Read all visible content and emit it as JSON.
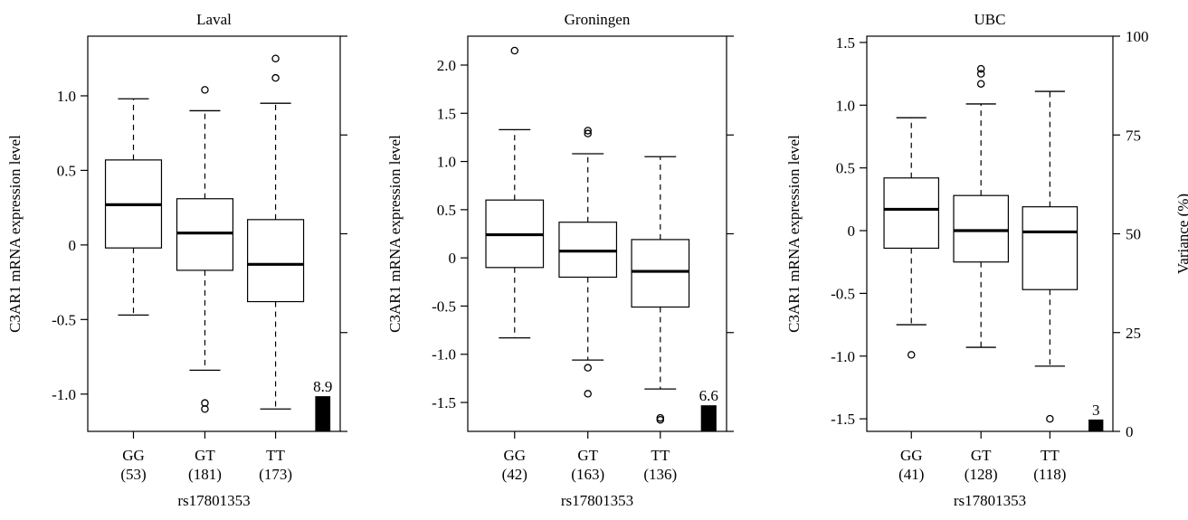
{
  "chart_data": [
    {
      "type": "box",
      "title": "Laval",
      "xlabel": "rs17801353",
      "ylabel": "C3AR1 mRNA expression level",
      "y2label": "",
      "ylim": [
        -1.25,
        1.4
      ],
      "yticks": [
        -1.0,
        -0.5,
        0,
        0.5,
        1.0
      ],
      "ytick_labels": [
        "-1.0",
        "-0.5",
        "0",
        "0.5",
        "1.0"
      ],
      "y2lim": [
        0,
        100
      ],
      "y2ticks": [
        0,
        25,
        50,
        75,
        100
      ],
      "y2tick_labels": [],
      "categories": [
        "GG",
        "GT",
        "TT"
      ],
      "counts": [
        "(53)",
        "(181)",
        "(173)"
      ],
      "boxes": [
        {
          "q1": -0.02,
          "median": 0.27,
          "q3": 0.57,
          "whisker_low": -0.47,
          "whisker_high": 0.98,
          "outliers": []
        },
        {
          "q1": -0.17,
          "median": 0.08,
          "q3": 0.31,
          "whisker_low": -0.84,
          "whisker_high": 0.9,
          "outliers": [
            1.04,
            -1.06,
            -1.1
          ]
        },
        {
          "q1": -0.38,
          "median": -0.13,
          "q3": 0.17,
          "whisker_low": -1.1,
          "whisker_high": 0.95,
          "outliers": [
            1.25,
            1.12
          ]
        }
      ],
      "variance_bar": {
        "value": 8.9,
        "label": "8.9"
      }
    },
    {
      "type": "box",
      "title": "Groningen",
      "xlabel": "rs17801353",
      "ylabel": "C3AR1 mRNA expression level",
      "y2label": "",
      "ylim": [
        -1.8,
        2.3
      ],
      "yticks": [
        -1.5,
        -1.0,
        -0.5,
        0,
        0.5,
        1.0,
        1.5,
        2.0
      ],
      "ytick_labels": [
        "-1.5",
        "-1.0",
        "-0.5",
        "0",
        "0.5",
        "1.0",
        "1.5",
        "2.0"
      ],
      "y2lim": [
        0,
        100
      ],
      "y2ticks": [
        0,
        25,
        50,
        75,
        100
      ],
      "y2tick_labels": [],
      "categories": [
        "GG",
        "GT",
        "TT"
      ],
      "counts": [
        "(42)",
        "(163)",
        "(136)"
      ],
      "boxes": [
        {
          "q1": -0.1,
          "median": 0.24,
          "q3": 0.6,
          "whisker_low": -0.83,
          "whisker_high": 1.33,
          "outliers": [
            2.15
          ]
        },
        {
          "q1": -0.2,
          "median": 0.07,
          "q3": 0.37,
          "whisker_low": -1.06,
          "whisker_high": 1.08,
          "outliers": [
            1.32,
            1.29,
            -1.14,
            -1.41
          ]
        },
        {
          "q1": -0.51,
          "median": -0.14,
          "q3": 0.19,
          "whisker_low": -1.36,
          "whisker_high": 1.05,
          "outliers": [
            -1.66,
            -1.68
          ]
        }
      ],
      "variance_bar": {
        "value": 6.6,
        "label": "6.6"
      }
    },
    {
      "type": "box",
      "title": "UBC",
      "xlabel": "rs17801353",
      "ylabel": "C3AR1 mRNA expression level",
      "y2label": "Variance (%)",
      "ylim": [
        -1.6,
        1.55
      ],
      "yticks": [
        -1.5,
        -1.0,
        -0.5,
        0,
        0.5,
        1.0,
        1.5
      ],
      "ytick_labels": [
        "-1.5",
        "-1.0",
        "-0.5",
        "0",
        "0.5",
        "1.0",
        "1.5"
      ],
      "y2lim": [
        0,
        100
      ],
      "y2ticks": [
        0,
        25,
        50,
        75,
        100
      ],
      "y2tick_labels": [
        "0",
        "25",
        "50",
        "75",
        "100"
      ],
      "categories": [
        "GG",
        "GT",
        "TT"
      ],
      "counts": [
        "(41)",
        "(128)",
        "(118)"
      ],
      "boxes": [
        {
          "q1": -0.14,
          "median": 0.17,
          "q3": 0.42,
          "whisker_low": -0.75,
          "whisker_high": 0.9,
          "outliers": [
            -0.99
          ]
        },
        {
          "q1": -0.25,
          "median": 0.0,
          "q3": 0.28,
          "whisker_low": -0.93,
          "whisker_high": 1.01,
          "outliers": [
            1.29,
            1.25,
            1.17
          ]
        },
        {
          "q1": -0.47,
          "median": -0.01,
          "q3": 0.19,
          "whisker_low": -1.08,
          "whisker_high": 1.11,
          "outliers": [
            -1.5
          ]
        }
      ],
      "variance_bar": {
        "value": 3,
        "label": "3"
      }
    }
  ]
}
